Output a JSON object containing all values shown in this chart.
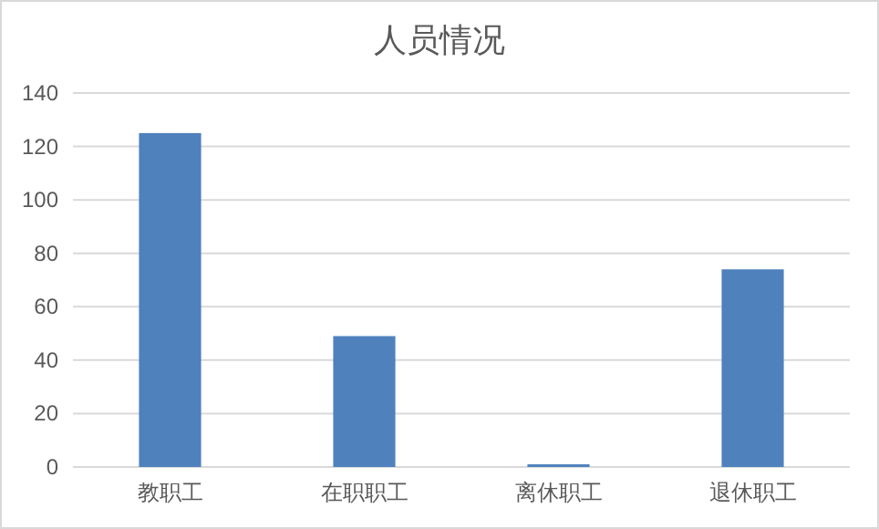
{
  "chart_data": {
    "type": "bar",
    "title": "人员情况",
    "categories": [
      "教职工",
      "在职职工",
      "离休职工",
      "退休职工"
    ],
    "values": [
      125,
      49,
      1,
      74
    ],
    "color": "#4f81bd",
    "ylim": [
      0,
      140
    ],
    "yticks": [
      0,
      20,
      40,
      60,
      80,
      100,
      120,
      140
    ],
    "grid": "y"
  }
}
